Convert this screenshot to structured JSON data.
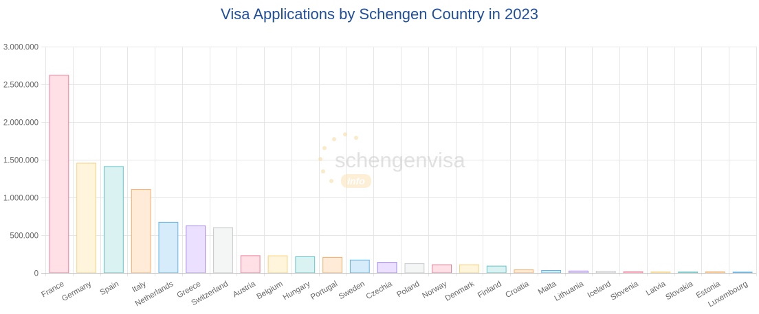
{
  "chart_data": {
    "type": "bar",
    "title": "Visa Applications by Schengen Country in 2023",
    "xlabel": "",
    "ylabel": "",
    "ylim": [
      0,
      3000000
    ],
    "yticks": [
      0,
      500000,
      1000000,
      1500000,
      2000000,
      2500000,
      3000000
    ],
    "ytick_labels": [
      "0",
      "500.000",
      "1.000.000",
      "1.500.000",
      "2.000.000",
      "2.500.000",
      "3.000.000"
    ],
    "grid": true,
    "categories": [
      "France",
      "Germany",
      "Spain",
      "Italy",
      "Netherlands",
      "Greece",
      "Switzerland",
      "Austria",
      "Belgium",
      "Hungary",
      "Portugal",
      "Sweden",
      "Czechia",
      "Poland",
      "Norway",
      "Denmark",
      "Finland",
      "Croatia",
      "Malta",
      "Lithuania",
      "Iceland",
      "Slovenia",
      "Latvia",
      "Slovakia",
      "Estonia",
      "Luxembourg"
    ],
    "values": [
      2620000,
      1455000,
      1410000,
      1105000,
      670000,
      625000,
      600000,
      228000,
      226000,
      215000,
      205000,
      170000,
      140000,
      122000,
      108000,
      108000,
      90000,
      40000,
      32000,
      25000,
      22000,
      15000,
      12000,
      11000,
      13000,
      10000
    ],
    "colors": [
      {
        "fill": "#ffe0e6",
        "stroke": "#f07e98"
      },
      {
        "fill": "#fff4dc",
        "stroke": "#f8d27e"
      },
      {
        "fill": "#dbf2f2",
        "stroke": "#62c5c5"
      },
      {
        "fill": "#ffebd8",
        "stroke": "#f5ad68"
      },
      {
        "fill": "#d6ecfb",
        "stroke": "#5db3ea"
      },
      {
        "fill": "#ebe0ff",
        "stroke": "#a588f2"
      },
      {
        "fill": "#f4f5f5",
        "stroke": "#c6c8cc"
      }
    ]
  },
  "watermark": {
    "brand": "schengenvisa",
    "badge": "Info"
  }
}
